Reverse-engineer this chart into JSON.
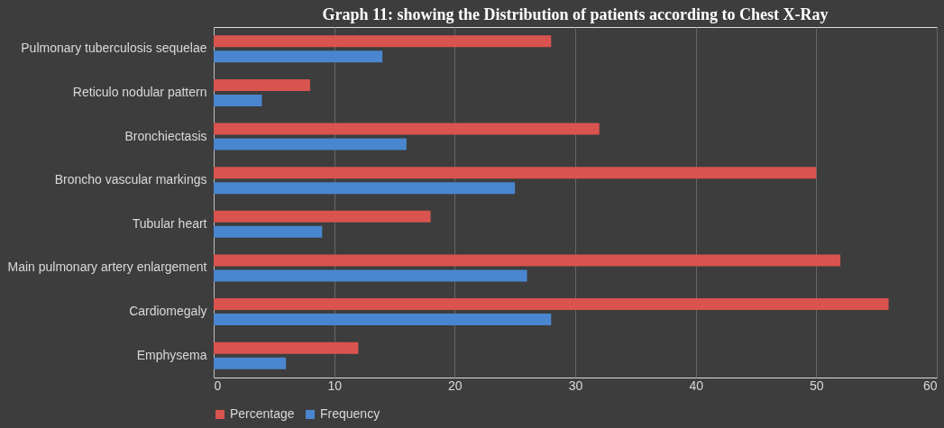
{
  "chart_data": {
    "type": "bar",
    "orientation": "horizontal",
    "title": "Graph 11: showing the Distribution of patients according to Chest X-Ray",
    "categories": [
      "Pulmonary tuberculosis sequelae",
      "Reticulo nodular pattern",
      "Bronchiectasis",
      "Broncho vascular markings",
      "Tubular heart",
      "Main pulmonary artery enlargement",
      "Cardiomegaly",
      "Emphysema"
    ],
    "series": [
      {
        "name": "Percentage",
        "color": "#d9534f",
        "values": [
          28,
          8,
          32,
          50,
          18,
          52,
          56,
          12
        ]
      },
      {
        "name": "Frequency",
        "color": "#4a86cf",
        "values": [
          14,
          4,
          16,
          25,
          9,
          26,
          28,
          6
        ]
      }
    ],
    "xlim": [
      0,
      60
    ],
    "xticks": [
      0,
      10,
      20,
      30,
      40,
      50,
      60
    ],
    "grid": "x",
    "legend": "bottom"
  }
}
